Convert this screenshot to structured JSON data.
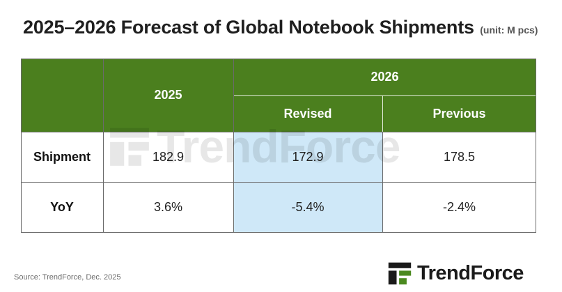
{
  "title": "2025–2026 Forecast of Global Notebook Shipments",
  "unit": "(unit: M pcs)",
  "chart_data": {
    "type": "table",
    "title": "2025–2026 Forecast of Global Notebook Shipments",
    "unit": "(unit: M pcs)",
    "columns": [
      {
        "year": "2025",
        "label": ""
      },
      {
        "year": "2026",
        "label": "Revised"
      },
      {
        "year": "2026",
        "label": "Previous"
      }
    ],
    "rows": [
      {
        "label": "Shipment",
        "values": [
          "182.9",
          "172.9",
          "178.5"
        ]
      },
      {
        "label": "YoY",
        "values": [
          "3.6%",
          "-5.4%",
          "-2.4%"
        ]
      }
    ],
    "highlight_column": "Revised"
  },
  "header": {
    "year_2025": "2025",
    "year_2026": "2026",
    "revised": "Revised",
    "previous": "Previous"
  },
  "watermark": "TrendForce",
  "source": "Source: TrendForce, Dec. 2025",
  "logo": {
    "text": "TrendForce"
  },
  "colors": {
    "header_green": "#4b7f1e",
    "highlight_blue": "#cfe8f8",
    "text": "#222222"
  }
}
